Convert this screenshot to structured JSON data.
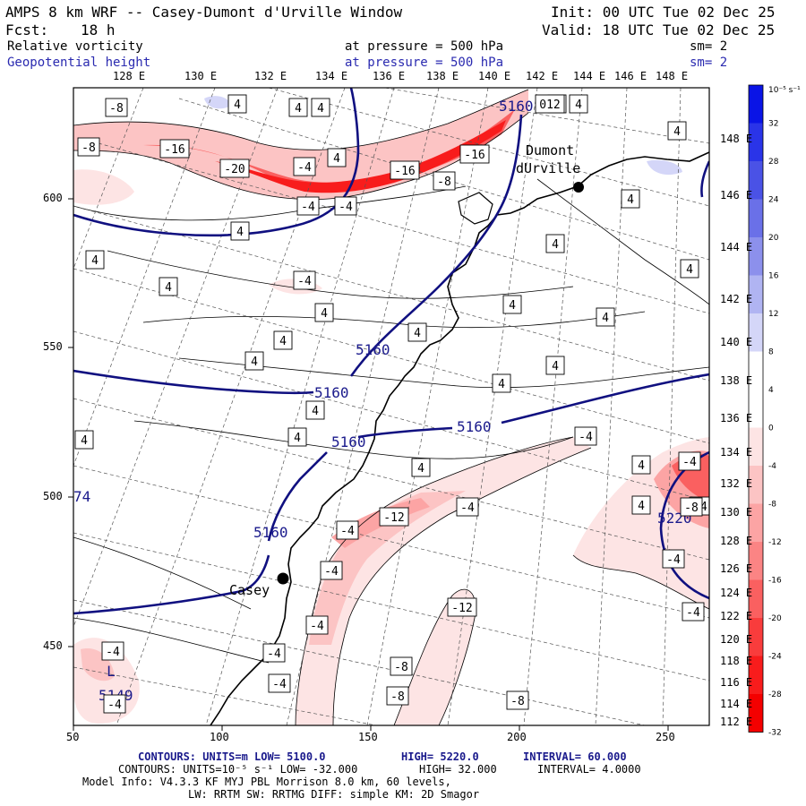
{
  "header": {
    "title": "AMPS 8 km WRF -- Casey-Dumont d'Urville Window",
    "fcst_label": "Fcst:",
    "fcst_value": "18 h",
    "init": "Init: 00 UTC Tue 02 Dec 25",
    "valid": "Valid: 18 UTC Tue 02 Dec 25",
    "field1_name": "Relative vorticity",
    "field1_level": "at pressure =  500 hPa",
    "field1_sm": "sm= 2",
    "field2_name": "Geopotential height",
    "field2_level": "at pressure =  500 hPa",
    "field2_sm": "sm= 2"
  },
  "top_lon_labels": [
    "128 E",
    "130 E",
    "132 E",
    "134 E",
    "136 E",
    "138 E",
    "140 E",
    "142 E",
    "144 E",
    "146 E",
    "148 E"
  ],
  "right_lon_labels": [
    "148 E",
    "146 E",
    "144 E",
    "142 E",
    "140 E",
    "138 E",
    "136 E",
    "134 E",
    "132 E",
    "130 E",
    "128 E",
    "126 E",
    "124 E",
    "122 E",
    "120 E",
    "118 E",
    "116 E",
    "114 E",
    "112 E"
  ],
  "x_axis": {
    "ticks": [
      "50",
      "100",
      "150",
      "200",
      "250"
    ]
  },
  "y_axis": {
    "ticks": [
      "600",
      "550",
      "500",
      "450"
    ]
  },
  "colorbar": {
    "unit_label": "10⁻⁵ s⁻¹",
    "ticks": [
      "32",
      "28",
      "24",
      "20",
      "16",
      "12",
      "8",
      "4",
      "0",
      "-4",
      "-8",
      "-12",
      "-16",
      "-20",
      "-24",
      "-28",
      "-32"
    ],
    "colors": [
      "#0a14e6",
      "#2a34e8",
      "#4a52e6",
      "#6a70e8",
      "#8c90ec",
      "#b0b4f2",
      "#d4d6f8",
      "#ffffff",
      "#ffffff",
      "#fde4e4",
      "#fcc4c4",
      "#fca4a4",
      "#fb8484",
      "#fa6060",
      "#f93c3c",
      "#f81c1c",
      "#f40000"
    ]
  },
  "places": {
    "dumont_line1": "Dumont",
    "dumont_line2": "dUrville",
    "casey": "Casey"
  },
  "height_labels": [
    "5160",
    "5160",
    "5160",
    "5160",
    "5160",
    "5160",
    "5149",
    "5220",
    "74"
  ],
  "vort_labels": [
    "-8",
    "4",
    "4",
    "4",
    "4",
    "012",
    "4",
    "-8",
    "-16",
    "-16",
    "-16",
    "-20",
    "-4",
    "4",
    "-8",
    "-4",
    "-4",
    "4",
    "4",
    "4",
    "4",
    "-4",
    "4",
    "4",
    "4",
    "4",
    "4",
    "4",
    "4",
    "4",
    "4",
    "4",
    "4",
    "4",
    "4",
    "4",
    "-4",
    "4",
    "4",
    "4",
    "-12",
    "-4",
    "-4",
    "-4",
    "-12",
    "-8",
    "-8",
    "-8",
    "-4",
    "-4",
    "-4",
    "-4",
    "-4",
    "-4",
    "-4",
    "-4",
    "-4",
    "L",
    "-8"
  ],
  "footer": {
    "line1_a": "CONTOURS:  UNITS=m  LOW=  5100.0",
    "line1_b": "HIGH=  5220.0",
    "line1_c": "INTERVAL=  60.000",
    "line2_a": "CONTOURS:  UNITS=10⁻⁵ s⁻¹  LOW= -32.000",
    "line2_b": "HIGH=  32.000",
    "line2_c": "INTERVAL=  4.0000",
    "line3": "Model Info: V4.3.3   KF     MYJ PBL  Morrison            8.0 km,  60 levels,",
    "line4": "LW: RRTM SW: RRTMG   DIFF: simple KM: 2D Smagor"
  }
}
